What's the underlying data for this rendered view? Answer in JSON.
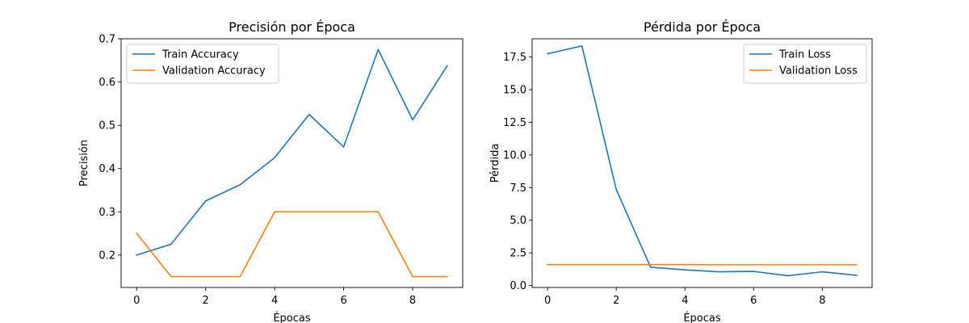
{
  "chart_data": [
    {
      "type": "line",
      "title": "Precisión por Época",
      "xlabel": "Épocas",
      "ylabel": "Precisión",
      "xlim": [
        -0.45,
        9.45
      ],
      "ylim": [
        0.125,
        0.7
      ],
      "xticks": [
        0,
        2,
        4,
        6,
        8
      ],
      "yticks": [
        0.2,
        0.3,
        0.4,
        0.5,
        0.6,
        0.7
      ],
      "ytick_labels": [
        "0.2",
        "0.3",
        "0.4",
        "0.5",
        "0.6",
        "0.7"
      ],
      "grid": false,
      "legend_position": "top-left",
      "x": [
        0,
        1,
        2,
        3,
        4,
        5,
        6,
        7,
        8,
        9
      ],
      "series": [
        {
          "name": "Train Accuracy",
          "color": "#1f77b4",
          "values": [
            0.2,
            0.225,
            0.325,
            0.3625,
            0.425,
            0.525,
            0.45,
            0.675,
            0.5125,
            0.6375
          ]
        },
        {
          "name": "Validation Accuracy",
          "color": "#ff7f0e",
          "values": [
            0.25,
            0.15,
            0.15,
            0.15,
            0.3,
            0.3,
            0.3,
            0.3,
            0.15,
            0.15
          ]
        }
      ]
    },
    {
      "type": "line",
      "title": "Pérdida por Época",
      "xlabel": "Épocas",
      "ylabel": "Pérdida",
      "xlim": [
        -0.45,
        9.45
      ],
      "ylim": [
        -0.15,
        18.9
      ],
      "xticks": [
        0,
        2,
        4,
        6,
        8
      ],
      "yticks": [
        0,
        2.5,
        5,
        7.5,
        10,
        12.5,
        15,
        17.5
      ],
      "ytick_labels": [
        "0.0",
        "2.5",
        "5.0",
        "7.5",
        "10.0",
        "12.5",
        "15.0",
        "17.5"
      ],
      "grid": false,
      "legend_position": "top-right",
      "x": [
        0,
        1,
        2,
        3,
        4,
        5,
        6,
        7,
        8,
        9
      ],
      "series": [
        {
          "name": "Train Loss",
          "color": "#1f77b4",
          "values": [
            17.75,
            18.35,
            7.35,
            1.4,
            1.2,
            1.05,
            1.08,
            0.75,
            1.05,
            0.78
          ]
        },
        {
          "name": "Validation Loss",
          "color": "#ff7f0e",
          "values": [
            1.6,
            1.6,
            1.6,
            1.6,
            1.6,
            1.59,
            1.59,
            1.59,
            1.59,
            1.59
          ]
        }
      ]
    }
  ]
}
